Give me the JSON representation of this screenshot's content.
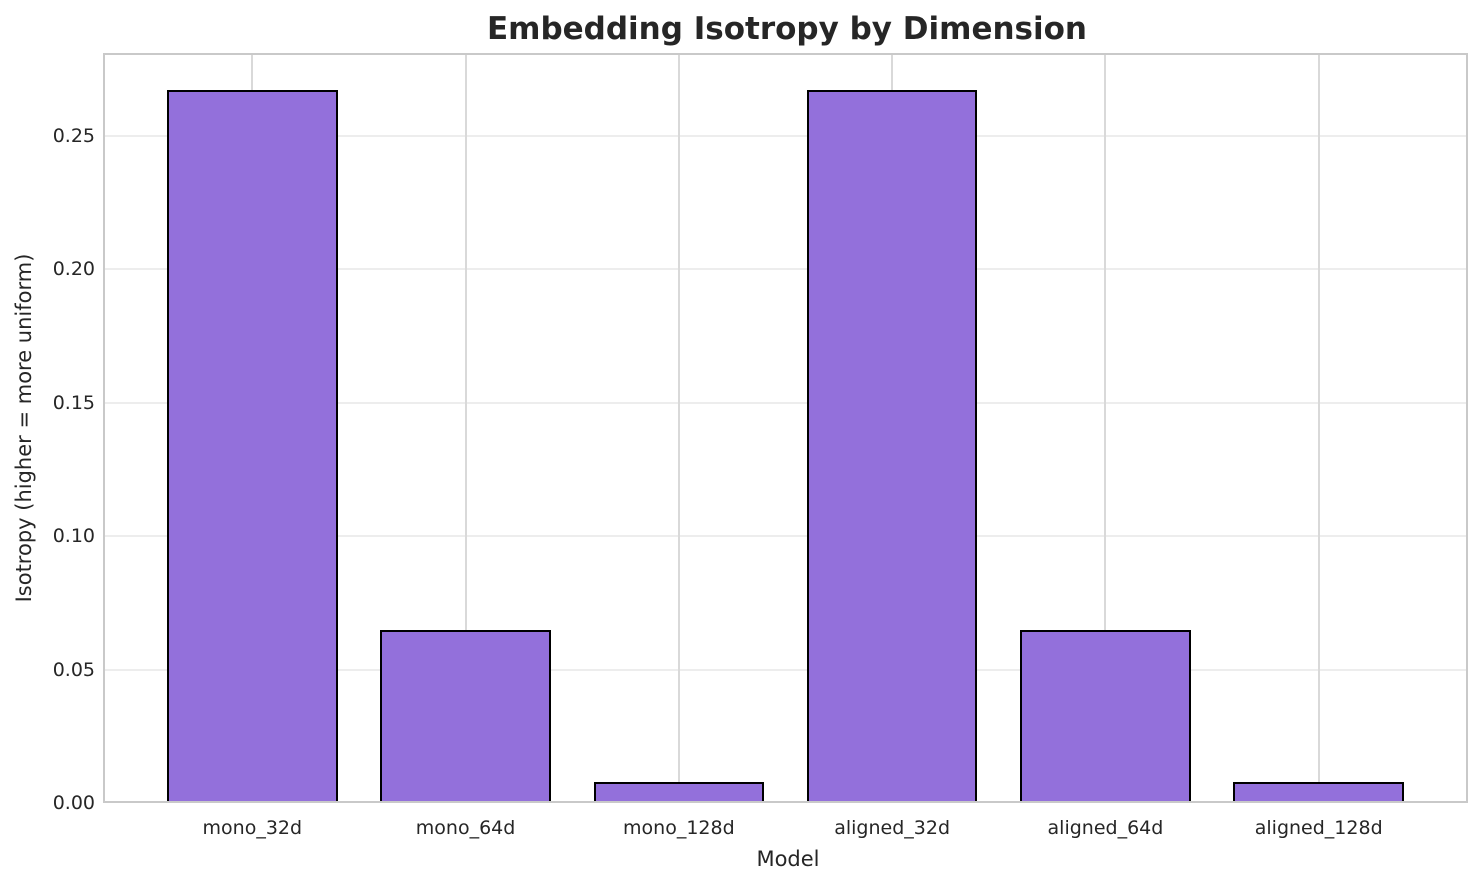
{
  "chart_data": {
    "type": "bar",
    "title": "Embedding Isotropy by Dimension",
    "xlabel": "Model",
    "ylabel": "Isotropy (higher = more uniform)",
    "categories": [
      "mono_32d",
      "mono_64d",
      "mono_128d",
      "aligned_32d",
      "aligned_64d",
      "aligned_128d"
    ],
    "values": [
      0.267,
      0.065,
      0.008,
      0.267,
      0.065,
      0.008
    ],
    "yticks": [
      0.0,
      0.05,
      0.1,
      0.15,
      0.2,
      0.25
    ],
    "ytick_labels": [
      "0.00",
      "0.05",
      "0.10",
      "0.15",
      "0.20",
      "0.25"
    ],
    "ylim": [
      0,
      0.281
    ],
    "xlim": [
      -0.7,
      5.7
    ],
    "bar_width_units": 0.8,
    "grid": true,
    "legend_position": "none",
    "bar_color": "#9370DB",
    "bar_edge_color": "#000000"
  },
  "colors": {
    "grid_horizontal": "#ededed",
    "grid_vertical": "#d9d9d9",
    "spine": "#c9c9c9",
    "text": "#262626",
    "background": "#ffffff"
  }
}
